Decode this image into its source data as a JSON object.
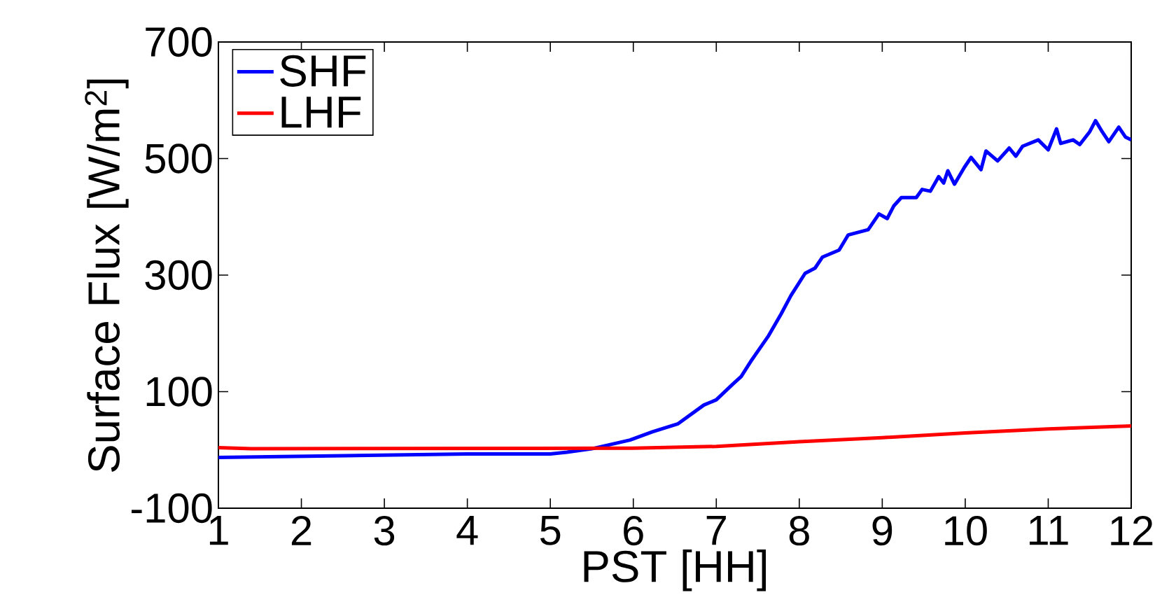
{
  "chart_data": {
    "type": "line",
    "xlabel": "PST [HH]",
    "ylabel": "Surface Flux [W/m$^{2}$]",
    "xlim": [
      1,
      12
    ],
    "ylim": [
      -100,
      700
    ],
    "xticks": [
      1,
      2,
      3,
      4,
      5,
      6,
      7,
      8,
      9,
      10,
      11,
      12
    ],
    "yticks": [
      -100,
      100,
      300,
      500,
      700
    ],
    "legend": "top left",
    "grid": false,
    "marker": "none",
    "line_style": "solid",
    "series": [
      {
        "name": "SHF",
        "color": "#0000ff",
        "x": [
          1,
          2,
          3,
          4,
          5,
          5.2,
          5.5,
          5.96,
          6.23,
          6.54,
          6.85,
          7.0,
          7.2,
          7.3,
          7.43,
          7.63,
          7.78,
          7.9,
          8.07,
          8.19,
          8.28,
          8.48,
          8.59,
          8.83,
          8.96,
          9.06,
          9.14,
          9.23,
          9.41,
          9.48,
          9.58,
          9.68,
          9.74,
          9.79,
          9.87,
          9.99,
          10.07,
          10.19,
          10.25,
          10.39,
          10.53,
          10.61,
          10.69,
          10.88,
          11.0,
          11.1,
          11.15,
          11.3,
          11.38,
          11.5,
          11.57,
          11.65,
          11.73,
          11.85,
          11.93,
          12
        ],
        "values": [
          -13,
          -11,
          -9,
          -7,
          -7,
          -4,
          2,
          17,
          31,
          45,
          77,
          86,
          113,
          126,
          155,
          196,
          233,
          265,
          303,
          312,
          331,
          343,
          369,
          378,
          405,
          397,
          419,
          433,
          433,
          447,
          444,
          469,
          458,
          479,
          456,
          485,
          502,
          481,
          513,
          496,
          518,
          504,
          521,
          532,
          515,
          551,
          526,
          532,
          524,
          546,
          565,
          546,
          529,
          554,
          537,
          532
        ]
      },
      {
        "name": "LHF",
        "color": "#ff0000",
        "x": [
          1,
          1.4,
          6,
          7,
          8,
          9,
          10,
          11,
          12
        ],
        "values": [
          4,
          2,
          3,
          6,
          14,
          21,
          29,
          36,
          41
        ]
      }
    ]
  }
}
